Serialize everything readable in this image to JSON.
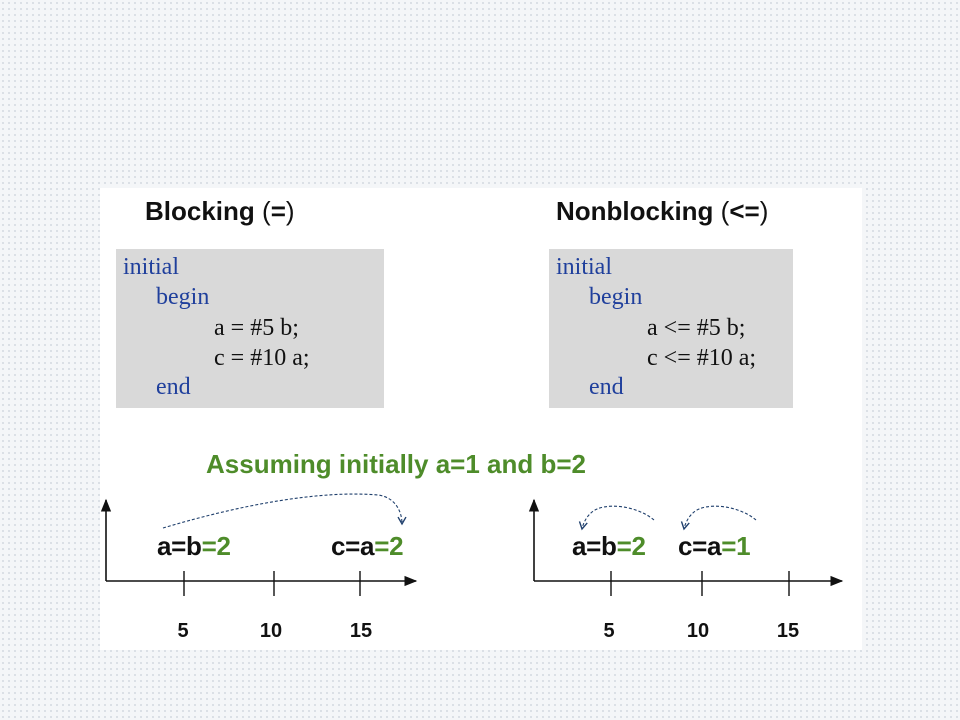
{
  "blocking": {
    "heading_bold_1": "Blocking",
    "heading_paren_open": " (",
    "heading_bold_2": "=",
    "heading_paren_close": ")",
    "code": {
      "line1": "initial",
      "line2": "begin",
      "line3": "a = #5 b;",
      "line4": "c = #10 a;",
      "line5": "end"
    },
    "timeline": {
      "label1_dark": "a=b",
      "label1_green": "=2",
      "label2_dark": "c=a",
      "label2_green": "=2",
      "ticks": [
        "5",
        "10",
        "15"
      ]
    }
  },
  "nonblocking": {
    "heading_bold_1": "Nonblocking",
    "heading_paren_open": " (",
    "heading_bold_2": "<=",
    "heading_paren_close": ")",
    "code": {
      "line1": "initial",
      "line2": "begin",
      "line3": "a <= #5 b;",
      "line4": "c <= #10 a;",
      "line5": "end"
    },
    "timeline": {
      "label1_dark": "a=b",
      "label1_green": "=2",
      "label2_dark": "c=a",
      "label2_green": "=1",
      "ticks": [
        "5",
        "10",
        "15"
      ]
    }
  },
  "assumption": "Assuming initially a=1 and b=2",
  "colors": {
    "keyword": "#1f3f9c",
    "result_green": "#4e8c2a",
    "code_bg": "#d9d9d9"
  }
}
